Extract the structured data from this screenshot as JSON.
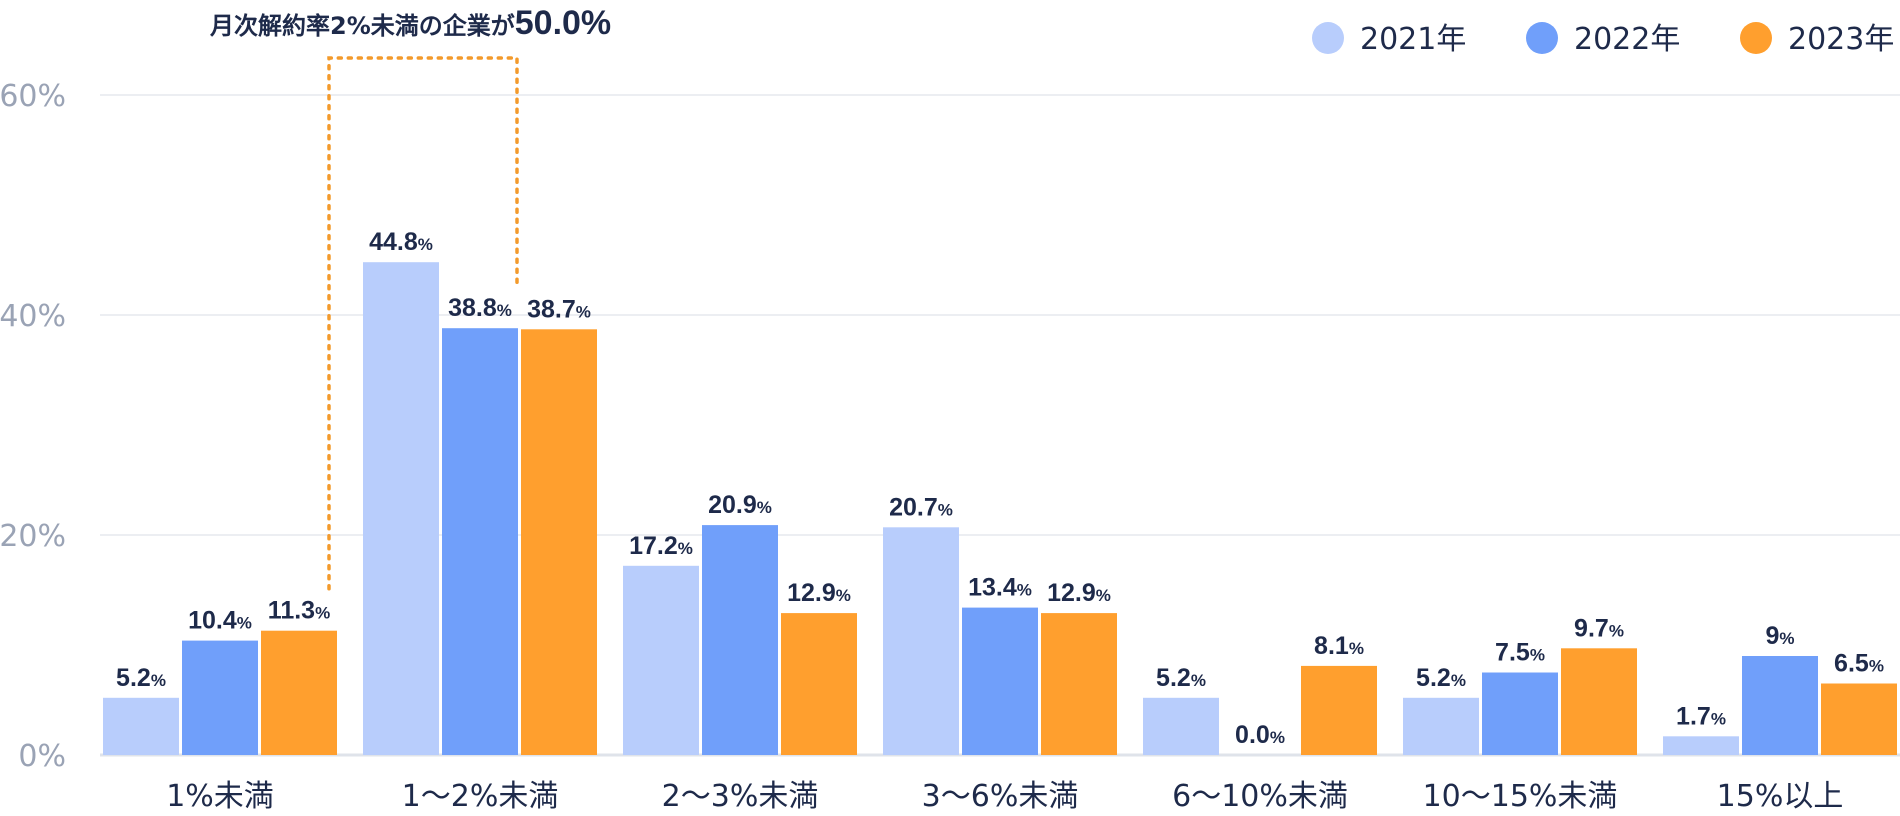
{
  "chart_data": {
    "type": "bar",
    "categories": [
      "1%未満",
      "1〜2%未満",
      "2〜3%未満",
      "3〜6%未満",
      "6〜10%未満",
      "10〜15%未満",
      "15%以上"
    ],
    "series": [
      {
        "name": "2021年",
        "color": "#b8cdfc",
        "values": [
          5.2,
          44.8,
          17.2,
          20.7,
          5.2,
          5.2,
          1.7
        ],
        "labels": [
          "5.2",
          "44.8",
          "17.2",
          "20.7",
          "5.2",
          "5.2",
          "1.7"
        ]
      },
      {
        "name": "2022年",
        "color": "#709ffa",
        "values": [
          10.4,
          38.8,
          20.9,
          13.4,
          0.0,
          7.5,
          9
        ],
        "labels": [
          "10.4",
          "38.8",
          "20.9",
          "13.4",
          "0.0",
          "7.5",
          "9"
        ]
      },
      {
        "name": "2023年",
        "color": "#ff9f2e",
        "values": [
          11.3,
          38.7,
          12.9,
          12.9,
          8.1,
          9.7,
          6.5
        ],
        "labels": [
          "11.3",
          "38.7",
          "12.9",
          "12.9",
          "8.1",
          "9.7",
          "6.5"
        ]
      }
    ],
    "value_suffix": "%",
    "yticks": [
      "0%",
      "20%",
      "40%",
      "60%"
    ],
    "ytick_values": [
      0,
      20,
      40,
      60
    ],
    "ylim": [
      0,
      60
    ],
    "grid": true,
    "legend_position": "top-right",
    "annotation": {
      "text": "月次解約率2%未満の企業が",
      "value": "50.0%",
      "color": "#f39a2b"
    }
  }
}
